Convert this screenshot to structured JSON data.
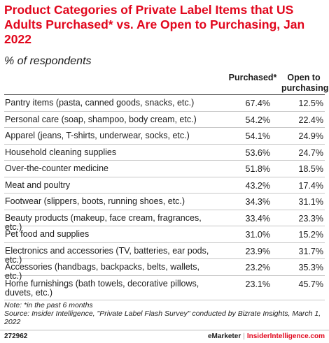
{
  "chart_data": {
    "type": "table",
    "title": "Product Categories of Private Label Items that US Adults Purchased* vs. Are Open to Purchasing, Jan 2022",
    "subtitle": "% of respondents",
    "columns": [
      "Purchased*",
      "Open to purchasing"
    ],
    "rows": [
      {
        "category": "Pantry items (pasta, canned goods, snacks, etc.)",
        "purchased": "67.4%",
        "open": "12.5%"
      },
      {
        "category": "Personal care (soap, shampoo, body cream, etc.)",
        "purchased": "54.2%",
        "open": "22.4%"
      },
      {
        "category": "Apparel (jeans, T-shirts, underwear, socks, etc.)",
        "purchased": "54.1%",
        "open": "24.9%"
      },
      {
        "category": "Household cleaning supplies",
        "purchased": "53.6%",
        "open": "24.7%"
      },
      {
        "category": "Over-the-counter medicine",
        "purchased": "51.8%",
        "open": "18.5%"
      },
      {
        "category": "Meat and poultry",
        "purchased": "43.2%",
        "open": "17.4%"
      },
      {
        "category": "Footwear (slippers, boots, running shoes, etc.)",
        "purchased": "34.3%",
        "open": "31.1%"
      },
      {
        "category": "Beauty products (makeup, face cream, fragrances, etc.)",
        "purchased": "33.4%",
        "open": "23.3%"
      },
      {
        "category": "Pet food and supplies",
        "purchased": "31.0%",
        "open": "15.2%"
      },
      {
        "category": "Electronics and accessories (TV, batteries, ear pods, etc.)",
        "purchased": "23.9%",
        "open": "31.7%"
      },
      {
        "category": "Accessories (handbags, backpacks, belts, wallets, etc.)",
        "purchased": "23.2%",
        "open": "35.3%"
      },
      {
        "category": "Home furnishings (bath towels, decorative pillows, duvets, etc.)",
        "purchased": "23.1%",
        "open": "45.7%"
      }
    ]
  },
  "footer": {
    "note": "Note: *in the past 6 months",
    "source": "Source: Insider Intelligence, \"Private Label Flash Survey\" conducted by Bizrate Insights, March 1, 2022",
    "id": "272962",
    "brand_left": "eMarketer",
    "brand_sep": "|",
    "brand_right": "InsiderIntelligence.com"
  },
  "colors": {
    "title": "#e1061c",
    "text": "#1c1c1c"
  }
}
